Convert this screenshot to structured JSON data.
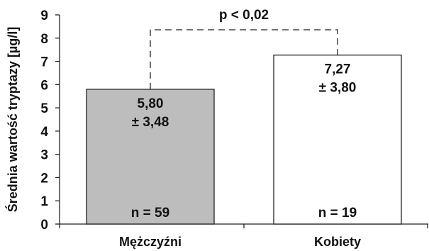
{
  "chart_data": {
    "type": "bar",
    "categories": [
      "Mężczyźni",
      "Kobiety"
    ],
    "values": [
      5.8,
      7.27
    ],
    "value_labels": [
      "5,80",
      "7,27"
    ],
    "sd_labels": [
      "± 3,48",
      "± 3,80"
    ],
    "n_labels": [
      "n = 59",
      "n = 19"
    ],
    "bar_colors": [
      "#bdbdbd",
      "#ffffff"
    ],
    "ylabel": "Średnia wartość tryptazy [µg/l]",
    "ylim": [
      0,
      9
    ],
    "yticks": [
      "0",
      "1",
      "2",
      "3",
      "4",
      "5",
      "6",
      "7",
      "8",
      "9"
    ],
    "grid": false,
    "significance": {
      "label": "p < 0,02",
      "between": [
        0,
        1
      ]
    }
  }
}
